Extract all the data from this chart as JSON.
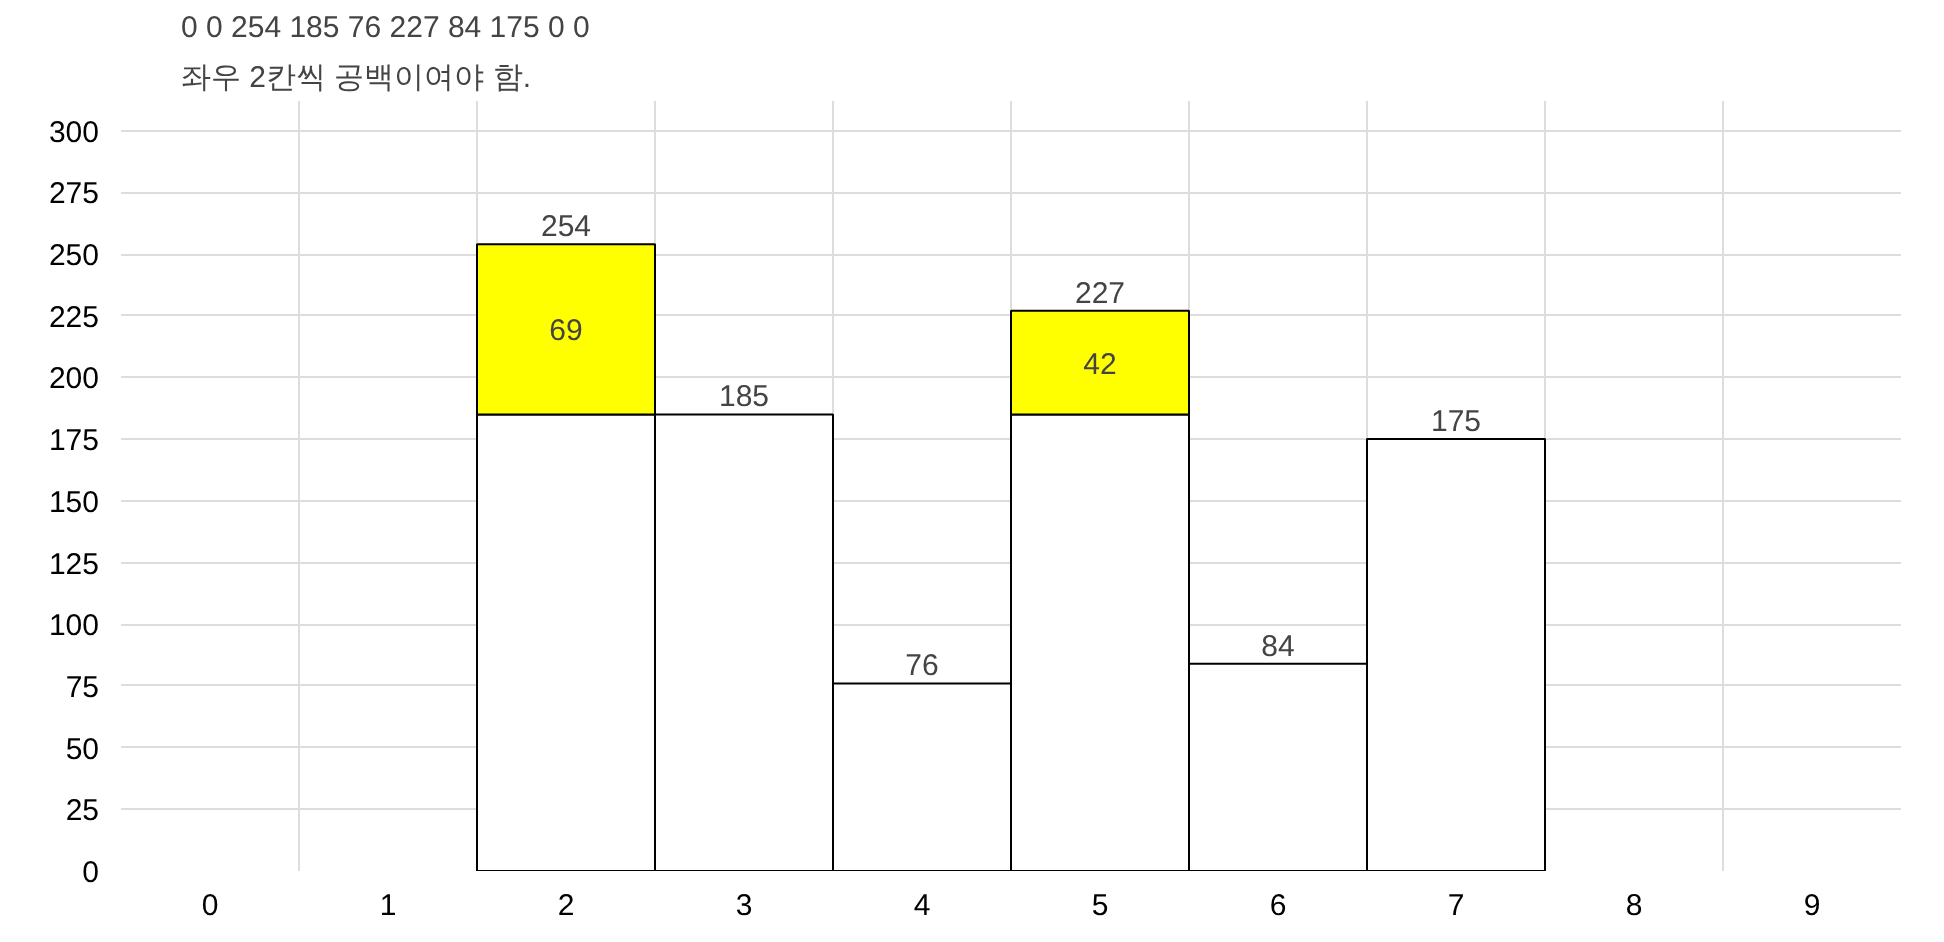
{
  "chart_data": {
    "type": "bar",
    "stacked": true,
    "annotations": [
      "0 0 254 185 76 227 84 175 0 0",
      "좌우 2칸씩 공백이여야 함."
    ],
    "categories": [
      "0",
      "1",
      "2",
      "3",
      "4",
      "5",
      "6",
      "7",
      "8",
      "9"
    ],
    "series": [
      {
        "color": "#ffffff",
        "values": [
          0,
          0,
          185,
          185,
          76,
          185,
          84,
          175,
          0,
          0
        ]
      },
      {
        "color": "#ffff00",
        "values": [
          0,
          0,
          69,
          0,
          0,
          42,
          0,
          0,
          0,
          0
        ],
        "value_labels": [
          null,
          null,
          "69",
          null,
          null,
          "42",
          null,
          null,
          null,
          null
        ]
      }
    ],
    "totals": [
      null,
      null,
      "254",
      "185",
      "76",
      "227",
      "84",
      "175",
      null,
      null
    ],
    "ylim": [
      0,
      312
    ],
    "yticks": [
      0,
      25,
      50,
      75,
      100,
      125,
      150,
      175,
      200,
      225,
      250,
      275,
      300
    ],
    "grid": true
  }
}
